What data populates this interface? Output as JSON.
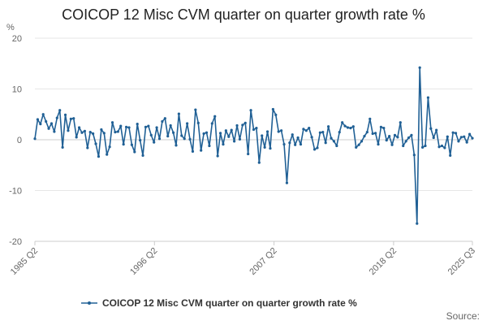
{
  "chart_data": {
    "type": "line",
    "title": "COICOP 12 Misc CVM quarter on quarter growth rate %",
    "ylabel": "%",
    "xlabel": "",
    "ylim": [
      -20,
      20
    ],
    "yticks": [
      20,
      10,
      0,
      -10,
      -20
    ],
    "xticks": [
      "1985 Q2",
      "1996 Q2",
      "2007 Q2",
      "2018 Q2",
      "2025 Q3"
    ],
    "x_start": "1985 Q2",
    "x_end": "2025 Q3",
    "legend_position": "bottom",
    "grid": true,
    "color": "#206095",
    "series": [
      {
        "name": "COICOP 12 Misc CVM quarter on quarter growth rate %",
        "values": [
          0.2,
          4.0,
          3.1,
          5.0,
          3.6,
          2.2,
          3.2,
          1.6,
          4.3,
          5.8,
          -1.5,
          4.9,
          1.8,
          4.1,
          4.2,
          0.5,
          2.4,
          1.4,
          1.7,
          -1.6,
          1.5,
          1.2,
          -0.8,
          -3.3,
          2.0,
          1.3,
          -2.9,
          -1.4,
          3.4,
          1.5,
          1.6,
          2.7,
          -0.9,
          2.5,
          2.4,
          -1.0,
          -2.4,
          3.1,
          -0.1,
          -3.1,
          2.5,
          2.7,
          0.9,
          -0.5,
          2.4,
          0.2,
          3.6,
          4.2,
          0.7,
          2.8,
          1.4,
          -1.1,
          5.1,
          0.8,
          0.2,
          3.2,
          0.1,
          -2.3,
          5.9,
          3.3,
          -2.1,
          1.2,
          1.4,
          -1.2,
          3.2,
          4.6,
          -3.2,
          1.3,
          -0.9,
          1.8,
          0.6,
          1.9,
          -0.3,
          2.8,
          0.1,
          2.9,
          3.3,
          -2.8,
          5.8,
          2.0,
          2.3,
          -4.5,
          0.8,
          -1.5,
          1.6,
          -1.7,
          6.0,
          4.9,
          1.6,
          1.8,
          -0.9,
          -8.5,
          -0.6,
          1.0,
          -1.0,
          0.4,
          -0.9,
          2.1,
          1.8,
          2.3,
          0.5,
          -1.9,
          -1.6,
          1.4,
          1.5,
          -0.6,
          2.6,
          0.3,
          -0.3,
          -1.2,
          1.5,
          3.4,
          2.7,
          2.4,
          2.3,
          2.6,
          -1.5,
          -1.0,
          -0.3,
          0.7,
          1.5,
          4.1,
          1.2,
          1.3,
          -0.9,
          2.5,
          2.3,
          -0.1,
          0.7,
          -1.0,
          0.9,
          0.5,
          3.4,
          -1.2,
          -0.3,
          0.4,
          0.9,
          -3.0,
          -16.5,
          14.2,
          -1.5,
          -1.2,
          8.3,
          2.2,
          0.4,
          1.9,
          -1.4,
          -1.2,
          -1.6,
          0.6,
          -3.1,
          1.4,
          1.3,
          -0.3,
          0.5,
          0.6,
          -0.5,
          1.1,
          0.3
        ]
      }
    ]
  },
  "legend": {
    "label": "COICOP 12 Misc CVM quarter on quarter growth rate %"
  },
  "footer": {
    "source": "Source:"
  }
}
